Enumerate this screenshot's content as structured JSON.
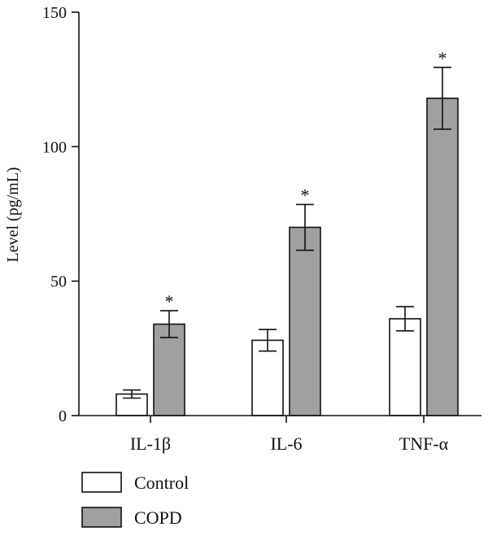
{
  "chart_data": {
    "type": "bar",
    "categories": [
      "IL-1β",
      "IL-6",
      "TNF-α"
    ],
    "series": [
      {
        "name": "Control",
        "values": [
          8,
          28,
          36
        ],
        "errors": [
          1.5,
          4,
          4.5
        ],
        "color": "#ffffff"
      },
      {
        "name": "COPD",
        "values": [
          34,
          70,
          118
        ],
        "errors": [
          5,
          8.5,
          11.5
        ],
        "color": "#a0a0a2",
        "significance": [
          "*",
          "*",
          "*"
        ]
      }
    ],
    "ylabel": "Level (pg/mL)",
    "xlabel": "",
    "ylim": [
      0,
      150
    ],
    "yticks": [
      0,
      50,
      100,
      150
    ],
    "grid": false,
    "legend_position": "bottom-left"
  }
}
